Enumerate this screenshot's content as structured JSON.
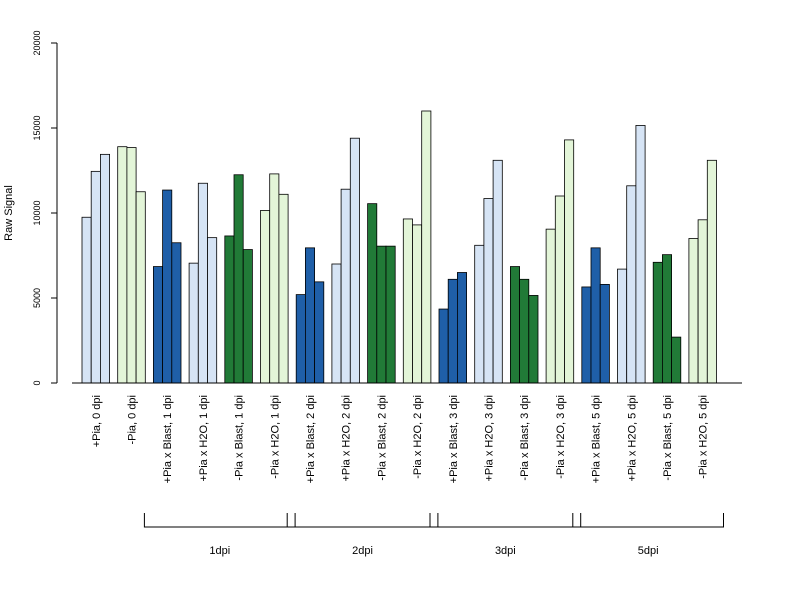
{
  "chart_data": {
    "type": "bar",
    "ylabel": "Raw Signal",
    "ylim": [
      0,
      20000
    ],
    "yticks": [
      "0",
      "5000",
      "10000",
      "15000",
      "20000"
    ],
    "colors": {
      "light_blue": "#d6e4f5",
      "light_green": "#e3f5d8",
      "dark_blue": "#1f5fa8",
      "dark_green": "#217a37"
    },
    "categories": [
      "+Pia, 0 dpi",
      "-Pia, 0 dpi",
      "+Pia x Blast, 1 dpi",
      "+Pia x H2O, 1 dpi",
      "-Pia x Blast, 1 dpi",
      "-Pia x H2O, 1 dpi",
      "+Pia x Blast, 2 dpi",
      "+Pia x H2O, 2 dpi",
      "-Pia x Blast, 2 dpi",
      "-Pia x H2O, 2 dpi",
      "+Pia x Blast, 3 dpi",
      "+Pia x H2O, 3 dpi",
      "-Pia x Blast, 3 dpi",
      "-Pia x H2O, 3 dpi",
      "+Pia x Blast, 5 dpi",
      "+Pia x H2O, 5 dpi",
      "-Pia x Blast, 5 dpi",
      "-Pia x H2O, 5 dpi"
    ],
    "group_colors": [
      "light_blue",
      "light_green",
      "dark_blue",
      "light_blue",
      "dark_green",
      "light_green",
      "dark_blue",
      "light_blue",
      "dark_green",
      "light_green",
      "dark_blue",
      "light_blue",
      "dark_green",
      "light_green",
      "dark_blue",
      "light_blue",
      "dark_green",
      "light_green"
    ],
    "values": [
      [
        9750,
        12450,
        13450
      ],
      [
        13900,
        13850,
        11250
      ],
      [
        6850,
        11350,
        8250
      ],
      [
        7050,
        11750,
        8550
      ],
      [
        8650,
        12250,
        7850
      ],
      [
        10150,
        12300,
        11100
      ],
      [
        5200,
        7950,
        5950
      ],
      [
        7000,
        11400,
        14400
      ],
      [
        10550,
        8050,
        8050
      ],
      [
        9650,
        9300,
        16000
      ],
      [
        4350,
        6100,
        6500
      ],
      [
        8100,
        10850,
        13100
      ],
      [
        6850,
        6100,
        5150
      ],
      [
        9050,
        11000,
        14300
      ],
      [
        5650,
        7950,
        5800
      ],
      [
        6700,
        11600,
        15150
      ],
      [
        7100,
        7550,
        2700
      ],
      [
        8500,
        9600,
        13100
      ]
    ],
    "brackets": [
      {
        "label": "1dpi",
        "from": 2,
        "to": 5
      },
      {
        "label": "2dpi",
        "from": 6,
        "to": 9
      },
      {
        "label": "3dpi",
        "from": 10,
        "to": 13
      },
      {
        "label": "5dpi",
        "from": 14,
        "to": 17
      }
    ]
  }
}
